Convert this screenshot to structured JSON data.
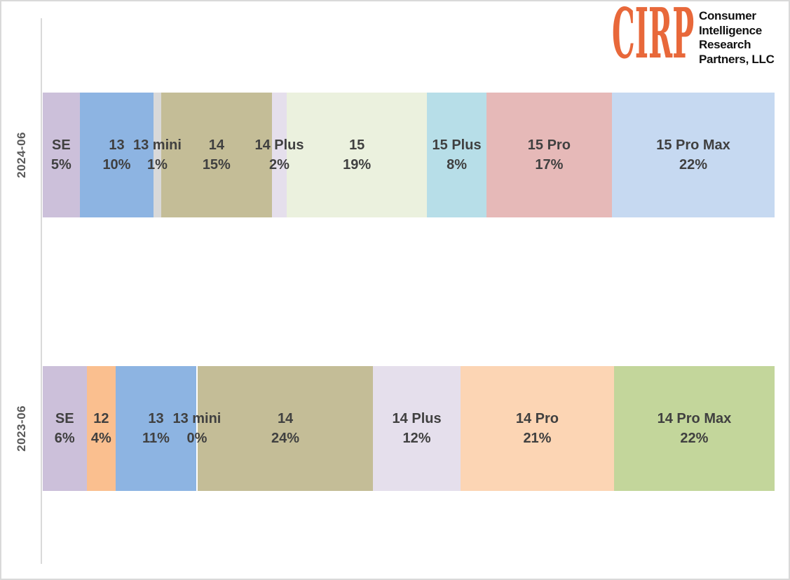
{
  "logo": {
    "abbr": "CIRP",
    "abbr_color": "#e8683a",
    "lines": [
      "Consumer",
      "Intelligence",
      "Research",
      "Partners, LLC"
    ]
  },
  "chart_data": {
    "type": "bar",
    "subtype": "100%-stacked-horizontal",
    "title": "",
    "xlabel": "",
    "ylabel": "",
    "xlim": [
      0,
      100
    ],
    "grid": false,
    "legend": "none",
    "axis_line_color": "#d9d9d9",
    "data_label_color": "#404040",
    "category_label_color": "#595959",
    "categories": [
      "2024-06",
      "2023-06"
    ],
    "rows": [
      {
        "category": "2024-06",
        "segments": [
          {
            "label": "SE",
            "value": 5,
            "color": "#ccc0da"
          },
          {
            "label": "13",
            "value": 10,
            "color": "#8db4e2"
          },
          {
            "label": "13 mini",
            "value": 1,
            "color": "#d9d9d9"
          },
          {
            "label": "14",
            "value": 15,
            "color": "#c4bd97"
          },
          {
            "label": "14 Plus",
            "value": 2,
            "color": "#e5dfec"
          },
          {
            "label": "15",
            "value": 19,
            "color": "#ebf1de"
          },
          {
            "label": "15 Plus",
            "value": 8,
            "color": "#b7dee8"
          },
          {
            "label": "15 Pro",
            "value": 17,
            "color": "#e6b9b8"
          },
          {
            "label": "15 Pro Max",
            "value": 22,
            "color": "#c6d9f1"
          }
        ]
      },
      {
        "category": "2023-06",
        "segments": [
          {
            "label": "SE",
            "value": 6,
            "color": "#ccc0da"
          },
          {
            "label": "12",
            "value": 4,
            "color": "#fabf8f"
          },
          {
            "label": "13",
            "value": 11,
            "color": "#8db4e2"
          },
          {
            "label": "13 mini",
            "value": 0,
            "color": "#ffffff"
          },
          {
            "label": "14",
            "value": 24,
            "color": "#c4bd97"
          },
          {
            "label": "14 Plus",
            "value": 12,
            "color": "#e5dfec"
          },
          {
            "label": "14 Pro",
            "value": 21,
            "color": "#fcd5b4"
          },
          {
            "label": "14 Pro Max",
            "value": 22,
            "color": "#c3d69b"
          }
        ]
      }
    ]
  }
}
